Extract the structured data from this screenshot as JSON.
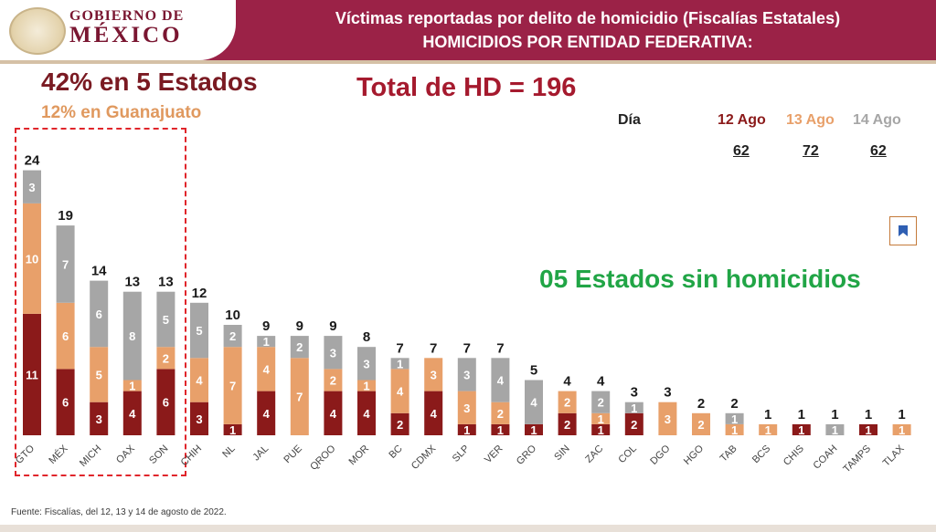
{
  "header": {
    "logo_line1": "GOBIERNO DE",
    "logo_line2": "MÉXICO",
    "title_line1": "Víctimas reportadas por delito de homicidio (Fiscalías Estatales)",
    "title_line2": "HOMICIDIOS POR ENTIDAD FEDERATIVA:"
  },
  "headline_states": "42% en 5 Estados",
  "headline_gto": "12% en Guanajuato",
  "total_label": "Total de HD = 196",
  "no_homicide_label": "05 Estados sin homicidios",
  "legend": {
    "day_label": "Día",
    "days": [
      {
        "label": "12 Ago",
        "count": "62",
        "color": "#8b1a1a"
      },
      {
        "label": "13 Ago",
        "count": "72",
        "color": "#e8a06a"
      },
      {
        "label": "14 Ago",
        "count": "62",
        "color": "#a6a6a6"
      }
    ]
  },
  "footer": "Fuente: Fiscalías, del 12, 13 y 14 de agosto de 2022.",
  "colors": {
    "header_bg": "#9b2247",
    "accent_red": "#a51a2e",
    "green": "#21a546"
  },
  "chart_data": {
    "type": "bar",
    "stacked": true,
    "categories": [
      "GTO",
      "MÉX",
      "MICH",
      "OAX",
      "SON",
      "CHIH",
      "NL",
      "JAL",
      "PUE",
      "QROO",
      "MOR",
      "BC",
      "CDMX",
      "SLP",
      "VER",
      "GRO",
      "SIN",
      "ZAC",
      "COL",
      "DGO",
      "HGO",
      "TAB",
      "BCS",
      "CHIS",
      "COAH",
      "TAMPS",
      "TLAX"
    ],
    "series": [
      {
        "name": "12 Ago",
        "color": "#8b1a1a",
        "values": [
          11,
          6,
          3,
          4,
          6,
          3,
          1,
          4,
          0,
          4,
          4,
          2,
          4,
          1,
          1,
          1,
          2,
          1,
          2,
          0,
          0,
          0,
          0,
          1,
          0,
          1,
          0
        ]
      },
      {
        "name": "13 Ago",
        "color": "#e8a06a",
        "values": [
          10,
          6,
          5,
          1,
          2,
          4,
          7,
          4,
          7,
          2,
          1,
          4,
          3,
          3,
          2,
          0,
          2,
          1,
          0,
          3,
          2,
          1,
          1,
          0,
          0,
          0,
          1
        ]
      },
      {
        "name": "14 Ago",
        "color": "#a6a6a6",
        "values": [
          3,
          7,
          6,
          8,
          5,
          5,
          2,
          1,
          2,
          3,
          3,
          1,
          0,
          3,
          4,
          4,
          0,
          2,
          1,
          0,
          0,
          1,
          0,
          0,
          1,
          0,
          0
        ]
      }
    ],
    "totals": [
      24,
      19,
      14,
      13,
      13,
      12,
      10,
      9,
      9,
      9,
      8,
      7,
      7,
      7,
      7,
      5,
      4,
      4,
      3,
      3,
      2,
      2,
      1,
      1,
      1,
      1,
      1
    ],
    "ylim": [
      0,
      24
    ]
  }
}
